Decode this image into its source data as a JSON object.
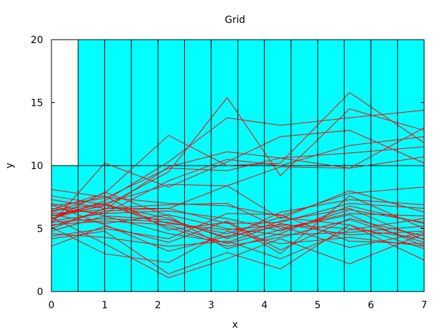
{
  "chart_data": {
    "type": "line",
    "title": "Grid",
    "xlabel": "x",
    "ylabel": "y",
    "xlim": [
      0,
      7
    ],
    "ylim": [
      0,
      20
    ],
    "xticks": [
      0,
      1,
      2,
      3,
      4,
      5,
      6,
      7
    ],
    "yticks": [
      0,
      5,
      10,
      15,
      20
    ],
    "grid": true,
    "colors": {
      "background_fill": "#00ffff",
      "series": "#ff0000",
      "grid": "#000000"
    },
    "fill_region": {
      "description": "cyan fill covers y<=10 everywhere and y>10 for x>=0.5",
      "x_start_upper": 0.5,
      "y_split": 10
    },
    "vertical_grid_x": [
      0.5,
      1.0,
      1.5,
      2.0,
      2.5,
      3.0,
      3.5,
      4.0,
      4.5,
      5.0,
      5.5,
      6.0,
      6.5,
      7.0
    ],
    "x": [
      0,
      1,
      2.2,
      3.3,
      4.3,
      5.6,
      7
    ],
    "series": [
      {
        "values": [
          6.5,
          7.8,
          12.4,
          10.0,
          10.2,
          15.8,
          11.8
        ]
      },
      {
        "values": [
          6.0,
          6.8,
          9.5,
          15.4,
          9.2,
          14.5,
          12.8
        ]
      },
      {
        "values": [
          5.8,
          7.2,
          10.3,
          13.8,
          13.2,
          13.8,
          14.4
        ]
      },
      {
        "values": [
          6.2,
          6.5,
          9.9,
          11.1,
          10.6,
          9.8,
          13.0
        ]
      },
      {
        "values": [
          5.4,
          10.2,
          8.3,
          10.3,
          12.3,
          12.8,
          10.2
        ]
      },
      {
        "values": [
          6.8,
          7.4,
          9.8,
          9.6,
          10.6,
          11.0,
          11.5
        ]
      },
      {
        "values": [
          5.6,
          6.2,
          8.8,
          10.5,
          10.0,
          11.6,
          12.3
        ]
      },
      {
        "values": [
          6.0,
          7.0,
          8.5,
          8.4,
          9.9,
          9.8,
          10.7
        ]
      },
      {
        "values": [
          8.1,
          7.5,
          7.0,
          6.8,
          6.0,
          7.8,
          8.3
        ]
      },
      {
        "values": [
          7.3,
          6.6,
          6.6,
          5.4,
          5.5,
          7.0,
          6.6
        ]
      },
      {
        "values": [
          6.6,
          6.2,
          6.4,
          5.8,
          4.8,
          6.5,
          5.5
        ]
      },
      {
        "values": [
          5.8,
          6.9,
          5.8,
          4.2,
          5.6,
          6.6,
          4.1
        ]
      },
      {
        "values": [
          5.3,
          5.6,
          5.3,
          3.8,
          4.9,
          6.1,
          3.6
        ]
      },
      {
        "values": [
          4.8,
          6.0,
          4.6,
          3.9,
          5.4,
          4.5,
          4.8
        ]
      },
      {
        "values": [
          6.1,
          5.4,
          6.1,
          5.0,
          4.5,
          4.7,
          5.2
        ]
      },
      {
        "values": [
          5.5,
          5.8,
          5.5,
          4.6,
          5.9,
          5.3,
          3.4
        ]
      },
      {
        "values": [
          6.4,
          7.0,
          5.1,
          3.6,
          4.3,
          5.7,
          3.9
        ]
      },
      {
        "values": [
          4.6,
          4.3,
          3.6,
          4.0,
          2.6,
          4.9,
          5.8
        ]
      },
      {
        "values": [
          5.1,
          3.0,
          2.3,
          4.8,
          3.8,
          4.3,
          3.6
        ]
      },
      {
        "values": [
          5.9,
          3.8,
          1.1,
          2.6,
          4.2,
          2.2,
          4.6
        ]
      },
      {
        "values": [
          4.2,
          4.8,
          1.4,
          3.1,
          1.8,
          5.3,
          2.5
        ]
      },
      {
        "values": [
          3.6,
          5.2,
          3.9,
          5.6,
          3.3,
          5.8,
          4.4
        ]
      },
      {
        "values": [
          7.0,
          6.0,
          5.7,
          4.3,
          6.3,
          7.3,
          6.9
        ]
      },
      {
        "values": [
          6.3,
          7.6,
          4.9,
          5.5,
          3.0,
          7.6,
          5.0
        ]
      },
      {
        "values": [
          5.0,
          6.6,
          6.9,
          7.0,
          5.0,
          6.2,
          6.0
        ]
      },
      {
        "values": [
          7.6,
          6.9,
          5.4,
          4.9,
          5.3,
          5.0,
          4.2
        ]
      },
      {
        "values": [
          5.7,
          7.9,
          6.0,
          3.4,
          4.6,
          6.8,
          5.4
        ]
      },
      {
        "values": [
          4.4,
          5.0,
          4.2,
          6.2,
          6.1,
          4.0,
          3.8
        ]
      },
      {
        "values": [
          6.9,
          5.3,
          3.2,
          4.4,
          5.2,
          3.5,
          4.7
        ]
      },
      {
        "values": [
          5.2,
          6.4,
          6.6,
          8.4,
          5.8,
          8.0,
          6.3
        ]
      }
    ]
  }
}
